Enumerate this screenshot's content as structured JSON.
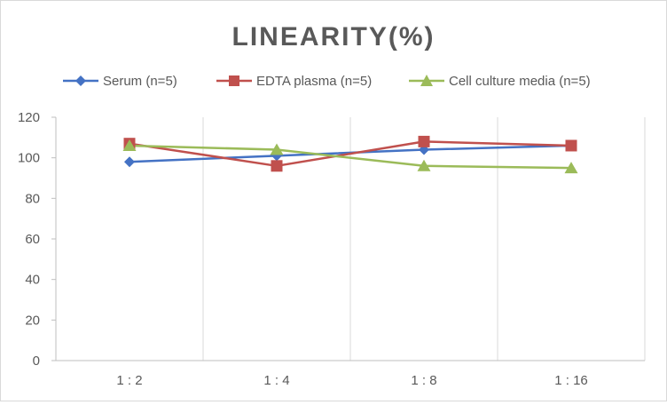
{
  "chart_data": {
    "type": "line",
    "title": "LINEARITY(%)",
    "xlabel": "",
    "ylabel": "",
    "categories": [
      "1:2",
      "1:4",
      "1:8",
      "1:16"
    ],
    "ylim": [
      0,
      120
    ],
    "yticks": [
      0,
      20,
      40,
      60,
      80,
      100,
      120
    ],
    "grid": "vertical",
    "legend_position": "top",
    "series": [
      {
        "name": "Serum (n=5)",
        "values": [
          98,
          101,
          104,
          106
        ],
        "color": "#4472c4",
        "marker": "diamond"
      },
      {
        "name": "EDTA plasma (n=5)",
        "values": [
          107,
          96,
          108,
          106
        ],
        "color": "#c0504d",
        "marker": "square"
      },
      {
        "name": "Cell culture media (n=5)",
        "values": [
          106,
          104,
          96,
          95
        ],
        "color": "#9bbb59",
        "marker": "triangle"
      }
    ]
  }
}
